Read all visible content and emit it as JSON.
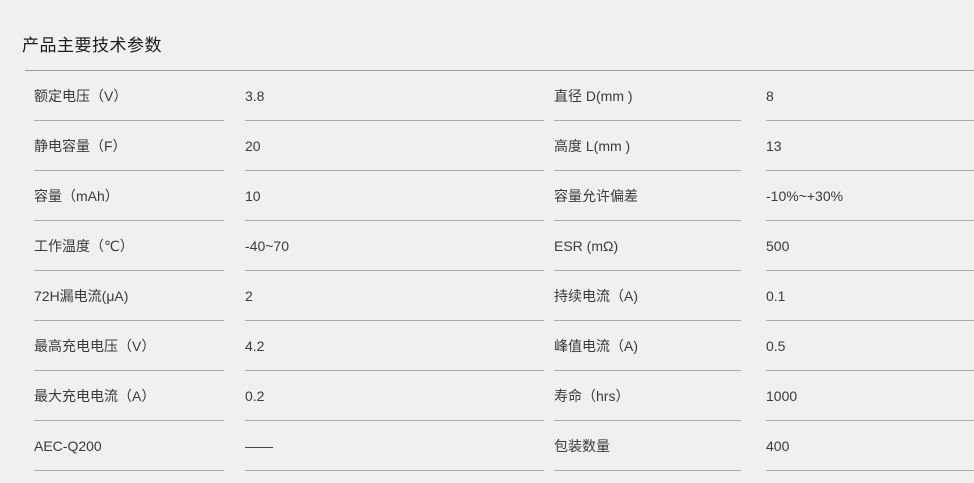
{
  "page": {
    "title": "产品主要技术参数",
    "background_color": "#f0f0ef",
    "title_color": "#1b1b1b",
    "text_color": "#3a3a3a",
    "header_rule_color": "#999999",
    "cell_rule_color": "#aaaaaa"
  },
  "spec_table": {
    "rows": [
      {
        "label_left": "额定电压（V）",
        "value_left": "3.8",
        "label_right": "直径 D(mm )",
        "value_right": "8"
      },
      {
        "label_left": "静电容量（F）",
        "value_left": "20",
        "label_right": "高度 L(mm )",
        "value_right": "13"
      },
      {
        "label_left": "容量（mAh）",
        "value_left": "10",
        "label_right": "容量允许偏差",
        "value_right": "-10%~+30%"
      },
      {
        "label_left": "工作温度（℃）",
        "value_left": "-40~70",
        "label_right": "ESR (mΩ)",
        "value_right": "500"
      },
      {
        "label_left": "72H漏电流(μA)",
        "value_left": "2",
        "label_right": "持续电流（A)",
        "value_right": "0.1"
      },
      {
        "label_left": "最高充电电压（V）",
        "value_left": "4.2",
        "label_right": "峰值电流（A)",
        "value_right": "0.5"
      },
      {
        "label_left": "最大充电电流（A）",
        "value_left": "0.2",
        "label_right": "寿命（hrs）",
        "value_right": "1000"
      },
      {
        "label_left": "AEC-Q200",
        "value_left": "——",
        "label_right": "包装数量",
        "value_right": "400"
      }
    ]
  }
}
